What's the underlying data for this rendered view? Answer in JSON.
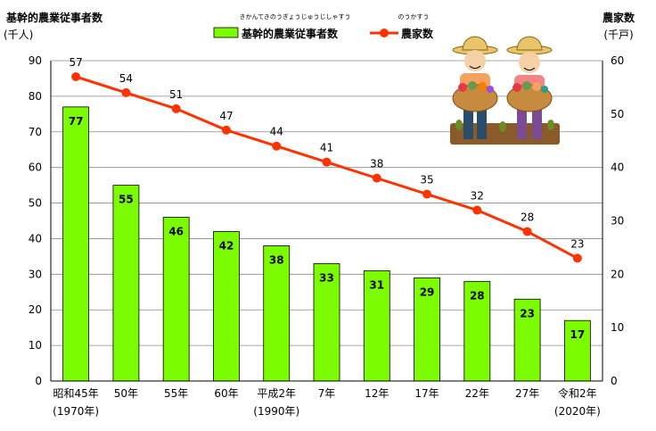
{
  "chart_data": {
    "type": "bar+line",
    "categories": [
      "昭和45年",
      "50年",
      "55年",
      "60年",
      "平成2年",
      "7年",
      "12年",
      "17年",
      "22年",
      "27年",
      "令和2年"
    ],
    "category_sublabels": [
      "(1970年)",
      "",
      "",
      "",
      "(1990年)",
      "",
      "",
      "",
      "",
      "",
      "(2020年)"
    ],
    "series": [
      {
        "name": "基幹的農業従事者数",
        "ruby": "きかんてきのうぎょうじゅうじしゃすう",
        "type": "bar",
        "axis": "left",
        "color": "#7CFC00",
        "values": [
          77,
          55,
          46,
          42,
          38,
          33,
          31,
          29,
          28,
          23,
          17
        ]
      },
      {
        "name": "農家数",
        "ruby": "のうかすう",
        "type": "line",
        "axis": "right",
        "color": "#FF3300",
        "values": [
          57,
          54,
          51,
          47,
          44,
          41,
          38,
          35,
          32,
          28,
          23
        ]
      }
    ],
    "left_axis": {
      "title": "基幹的農業従事者数",
      "unit": "(千人)",
      "range": [
        0,
        90
      ],
      "ticks": [
        0,
        10,
        20,
        30,
        40,
        50,
        60,
        70,
        80,
        90
      ]
    },
    "right_axis": {
      "title": "農家数",
      "unit": "(千戸)",
      "range": [
        0,
        60
      ],
      "ticks": [
        0,
        10,
        20,
        30,
        40,
        50,
        60
      ]
    },
    "grid": true,
    "legend_position": "top-center",
    "illustration": "two-farmers-with-vegetable-baskets"
  }
}
